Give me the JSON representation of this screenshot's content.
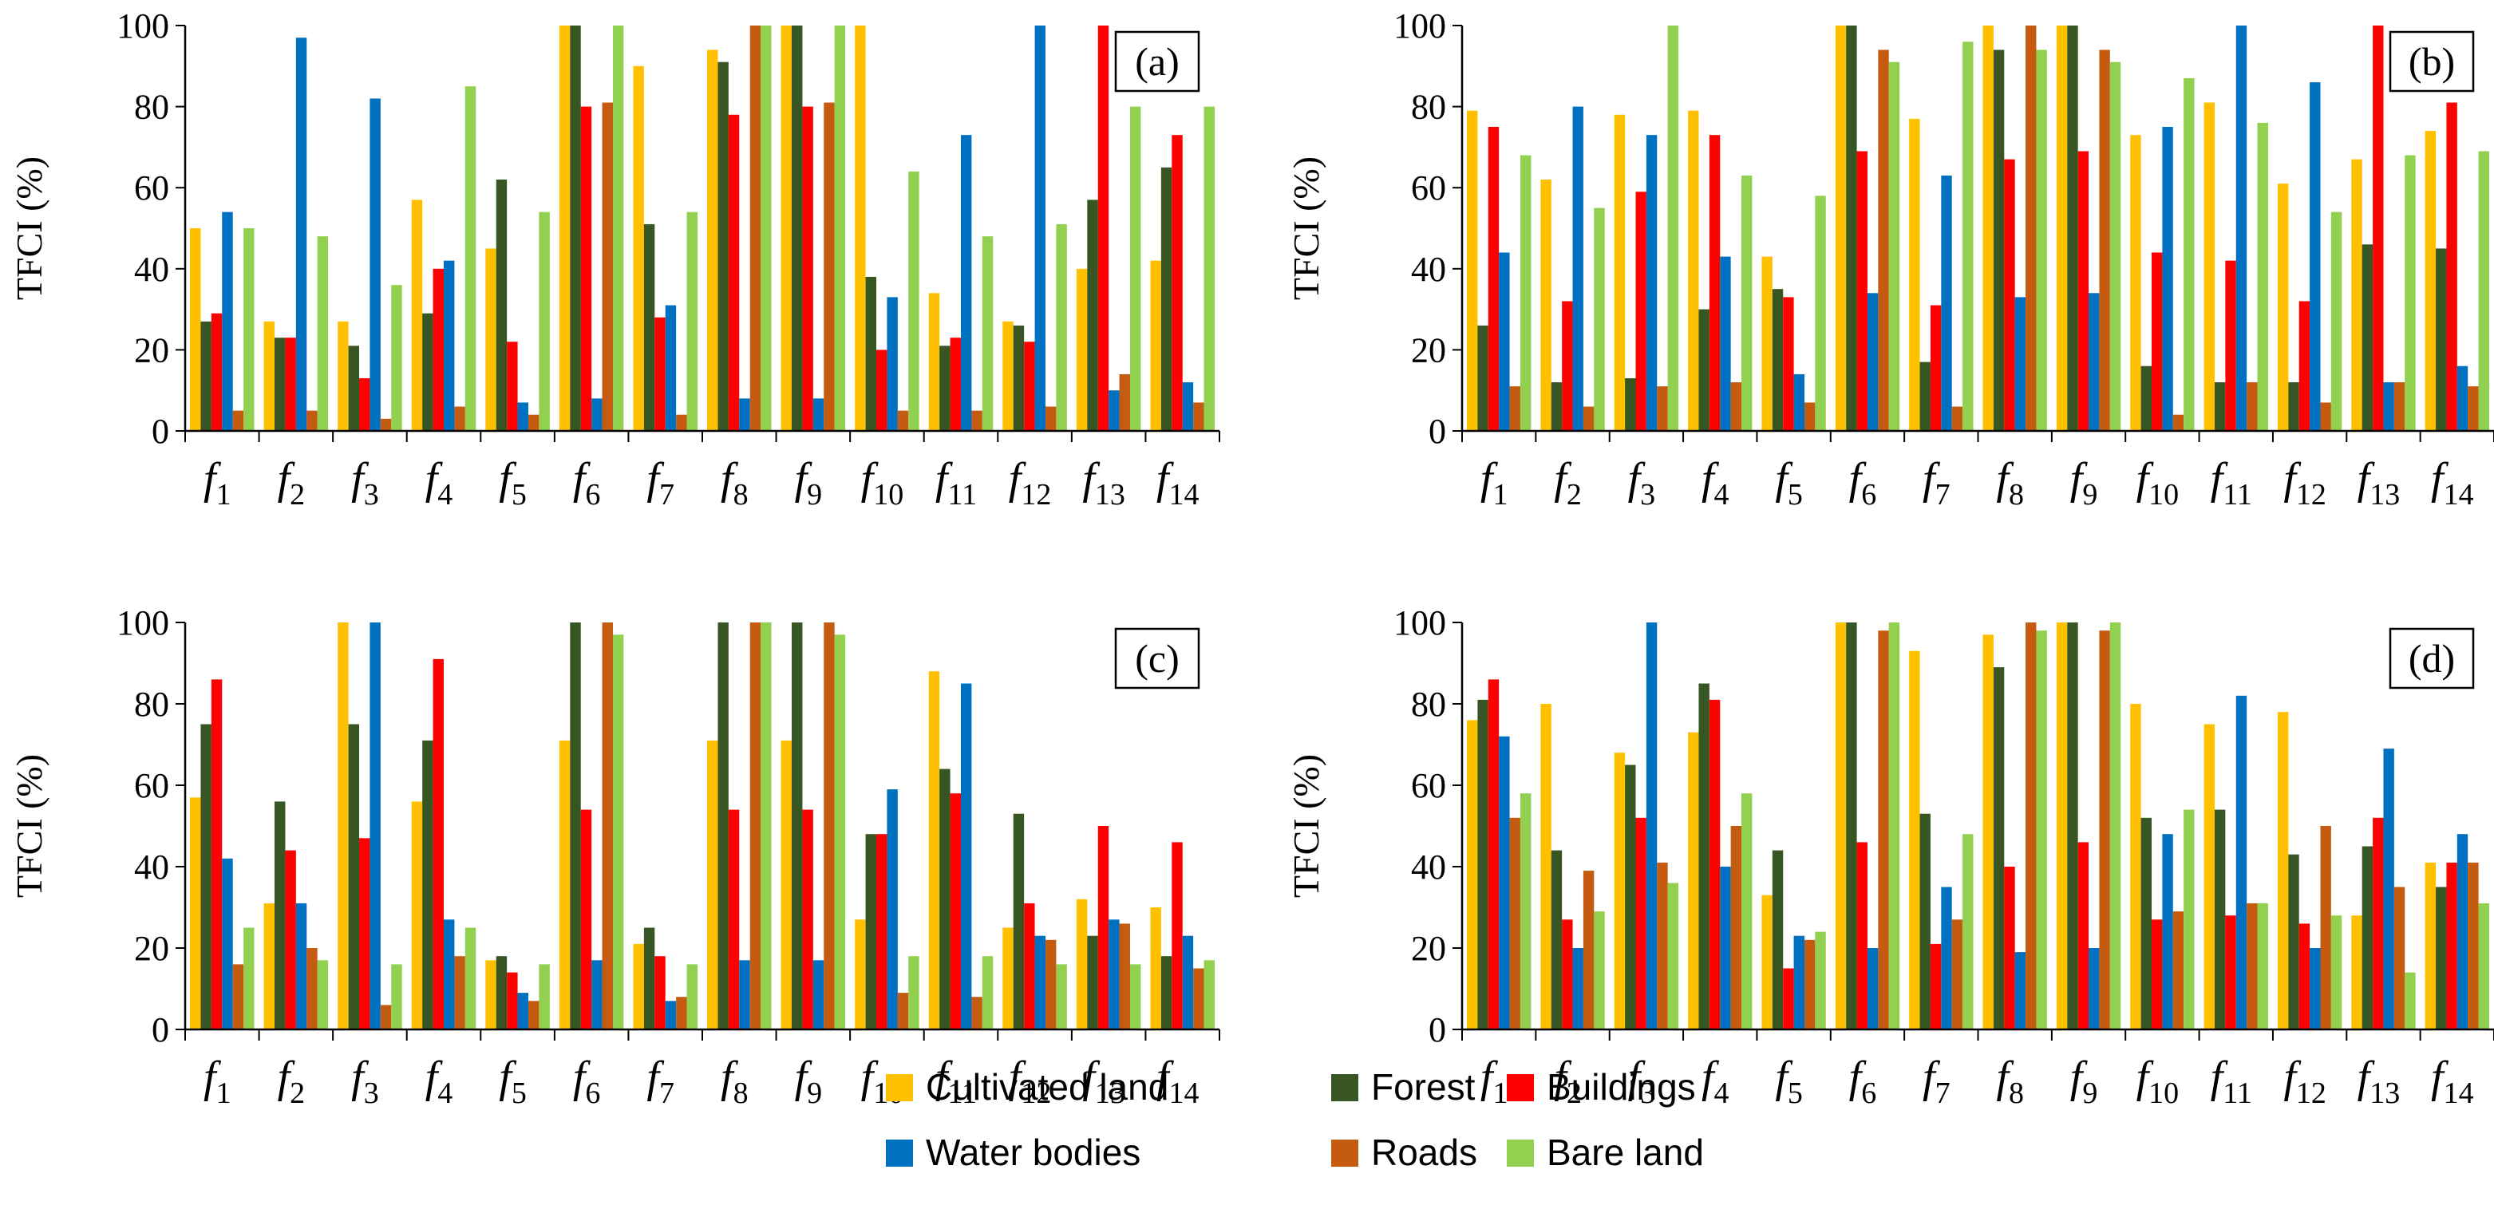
{
  "chart_data": [
    {
      "type": "bar",
      "panel_label": "(a)",
      "ylabel": "TFCI (%)",
      "xlabel": "",
      "ylim": [
        0,
        100
      ],
      "yticks": [
        0,
        20,
        40,
        60,
        80,
        100
      ],
      "categories": [
        "f1",
        "f2",
        "f3",
        "f4",
        "f5",
        "f6",
        "f7",
        "f8",
        "f9",
        "f10",
        "f11",
        "f12",
        "f13",
        "f14"
      ],
      "series": [
        {
          "name": "Cultivated land",
          "values": [
            50,
            27,
            27,
            57,
            45,
            100,
            90,
            94,
            100,
            100,
            34,
            27,
            40,
            42
          ]
        },
        {
          "name": "Forest",
          "values": [
            27,
            23,
            21,
            29,
            62,
            100,
            51,
            91,
            100,
            38,
            21,
            26,
            57,
            65
          ]
        },
        {
          "name": "Buildings",
          "values": [
            29,
            23,
            13,
            40,
            22,
            80,
            28,
            78,
            80,
            20,
            23,
            22,
            100,
            73
          ]
        },
        {
          "name": "Water bodies",
          "values": [
            54,
            97,
            82,
            42,
            7,
            8,
            31,
            8,
            8,
            33,
            73,
            100,
            10,
            12
          ]
        },
        {
          "name": "Roads",
          "values": [
            5,
            5,
            3,
            6,
            4,
            81,
            4,
            100,
            81,
            5,
            5,
            6,
            14,
            7
          ]
        },
        {
          "name": "Bare land",
          "values": [
            50,
            48,
            36,
            85,
            54,
            100,
            54,
            100,
            100,
            64,
            48,
            51,
            80,
            80
          ]
        }
      ]
    },
    {
      "type": "bar",
      "panel_label": "(b)",
      "ylabel": "TFCI (%)",
      "xlabel": "",
      "ylim": [
        0,
        100
      ],
      "yticks": [
        0,
        20,
        40,
        60,
        80,
        100
      ],
      "categories": [
        "f1",
        "f2",
        "f3",
        "f4",
        "f5",
        "f6",
        "f7",
        "f8",
        "f9",
        "f10",
        "f11",
        "f12",
        "f13",
        "f14"
      ],
      "series": [
        {
          "name": "Cultivated land",
          "values": [
            79,
            62,
            78,
            79,
            43,
            100,
            77,
            100,
            100,
            73,
            81,
            61,
            67,
            74
          ]
        },
        {
          "name": "Forest",
          "values": [
            26,
            12,
            13,
            30,
            35,
            100,
            17,
            94,
            100,
            16,
            12,
            12,
            46,
            45
          ]
        },
        {
          "name": "Buildings",
          "values": [
            75,
            32,
            59,
            73,
            33,
            69,
            31,
            67,
            69,
            44,
            42,
            32,
            100,
            81
          ]
        },
        {
          "name": "Water bodies",
          "values": [
            44,
            80,
            73,
            43,
            14,
            34,
            63,
            33,
            34,
            75,
            100,
            86,
            12,
            16
          ]
        },
        {
          "name": "Roads",
          "values": [
            11,
            6,
            11,
            12,
            7,
            94,
            6,
            100,
            94,
            4,
            12,
            7,
            12,
            11
          ]
        },
        {
          "name": "Bare land",
          "values": [
            68,
            55,
            100,
            63,
            58,
            91,
            96,
            94,
            91,
            87,
            76,
            54,
            68,
            69
          ]
        }
      ]
    },
    {
      "type": "bar",
      "panel_label": "(c)",
      "ylabel": "TFCI (%)",
      "xlabel": "",
      "ylim": [
        0,
        100
      ],
      "yticks": [
        0,
        20,
        40,
        60,
        80,
        100
      ],
      "categories": [
        "f1",
        "f2",
        "f3",
        "f4",
        "f5",
        "f6",
        "f7",
        "f8",
        "f9",
        "f10",
        "f11",
        "f12",
        "f13",
        "f14"
      ],
      "series": [
        {
          "name": "Cultivated land",
          "values": [
            57,
            31,
            100,
            56,
            17,
            71,
            21,
            71,
            71,
            27,
            88,
            25,
            32,
            30
          ]
        },
        {
          "name": "Forest",
          "values": [
            75,
            56,
            75,
            71,
            18,
            100,
            25,
            100,
            100,
            48,
            64,
            53,
            23,
            18
          ]
        },
        {
          "name": "Buildings",
          "values": [
            86,
            44,
            47,
            91,
            14,
            54,
            18,
            54,
            54,
            48,
            58,
            31,
            50,
            46
          ]
        },
        {
          "name": "Water bodies",
          "values": [
            42,
            31,
            100,
            27,
            9,
            17,
            7,
            17,
            17,
            59,
            85,
            23,
            27,
            23
          ]
        },
        {
          "name": "Roads",
          "values": [
            16,
            20,
            6,
            18,
            7,
            100,
            8,
            100,
            100,
            9,
            8,
            22,
            26,
            15
          ]
        },
        {
          "name": "Bare land",
          "values": [
            25,
            17,
            16,
            25,
            16,
            97,
            16,
            100,
            97,
            18,
            18,
            16,
            16,
            17
          ]
        }
      ]
    },
    {
      "type": "bar",
      "panel_label": "(d)",
      "ylabel": "TFCI (%)",
      "xlabel": "",
      "ylim": [
        0,
        100
      ],
      "yticks": [
        0,
        20,
        40,
        60,
        80,
        100
      ],
      "categories": [
        "f1",
        "f2",
        "f3",
        "f4",
        "f5",
        "f6",
        "f7",
        "f8",
        "f9",
        "f10",
        "f11",
        "f12",
        "f13",
        "f14"
      ],
      "series": [
        {
          "name": "Cultivated land",
          "values": [
            76,
            80,
            68,
            73,
            33,
            100,
            93,
            97,
            100,
            80,
            75,
            78,
            28,
            41
          ]
        },
        {
          "name": "Forest",
          "values": [
            81,
            44,
            65,
            85,
            44,
            100,
            53,
            89,
            100,
            52,
            54,
            43,
            45,
            35
          ]
        },
        {
          "name": "Buildings",
          "values": [
            86,
            27,
            52,
            81,
            15,
            46,
            21,
            40,
            46,
            27,
            28,
            26,
            52,
            41
          ]
        },
        {
          "name": "Water bodies",
          "values": [
            72,
            20,
            100,
            40,
            23,
            20,
            35,
            19,
            20,
            48,
            82,
            20,
            69,
            48
          ]
        },
        {
          "name": "Roads",
          "values": [
            52,
            39,
            41,
            50,
            22,
            98,
            27,
            100,
            98,
            29,
            31,
            50,
            35,
            41
          ]
        },
        {
          "name": "Bare land",
          "values": [
            58,
            29,
            36,
            58,
            24,
            100,
            48,
            98,
            100,
            54,
            31,
            28,
            14,
            31
          ]
        }
      ]
    }
  ],
  "colors": {
    "Cultivated land": "#FFC000",
    "Forest": "#375623",
    "Buildings": "#FF0000",
    "Water bodies": "#0070C0",
    "Roads": "#C55A11",
    "Bare land": "#92D050"
  },
  "legend": {
    "items": [
      "Cultivated land",
      "Forest",
      "Buildings",
      "Water bodies",
      "Roads",
      "Bare land"
    ],
    "placement": "bottom-center"
  }
}
